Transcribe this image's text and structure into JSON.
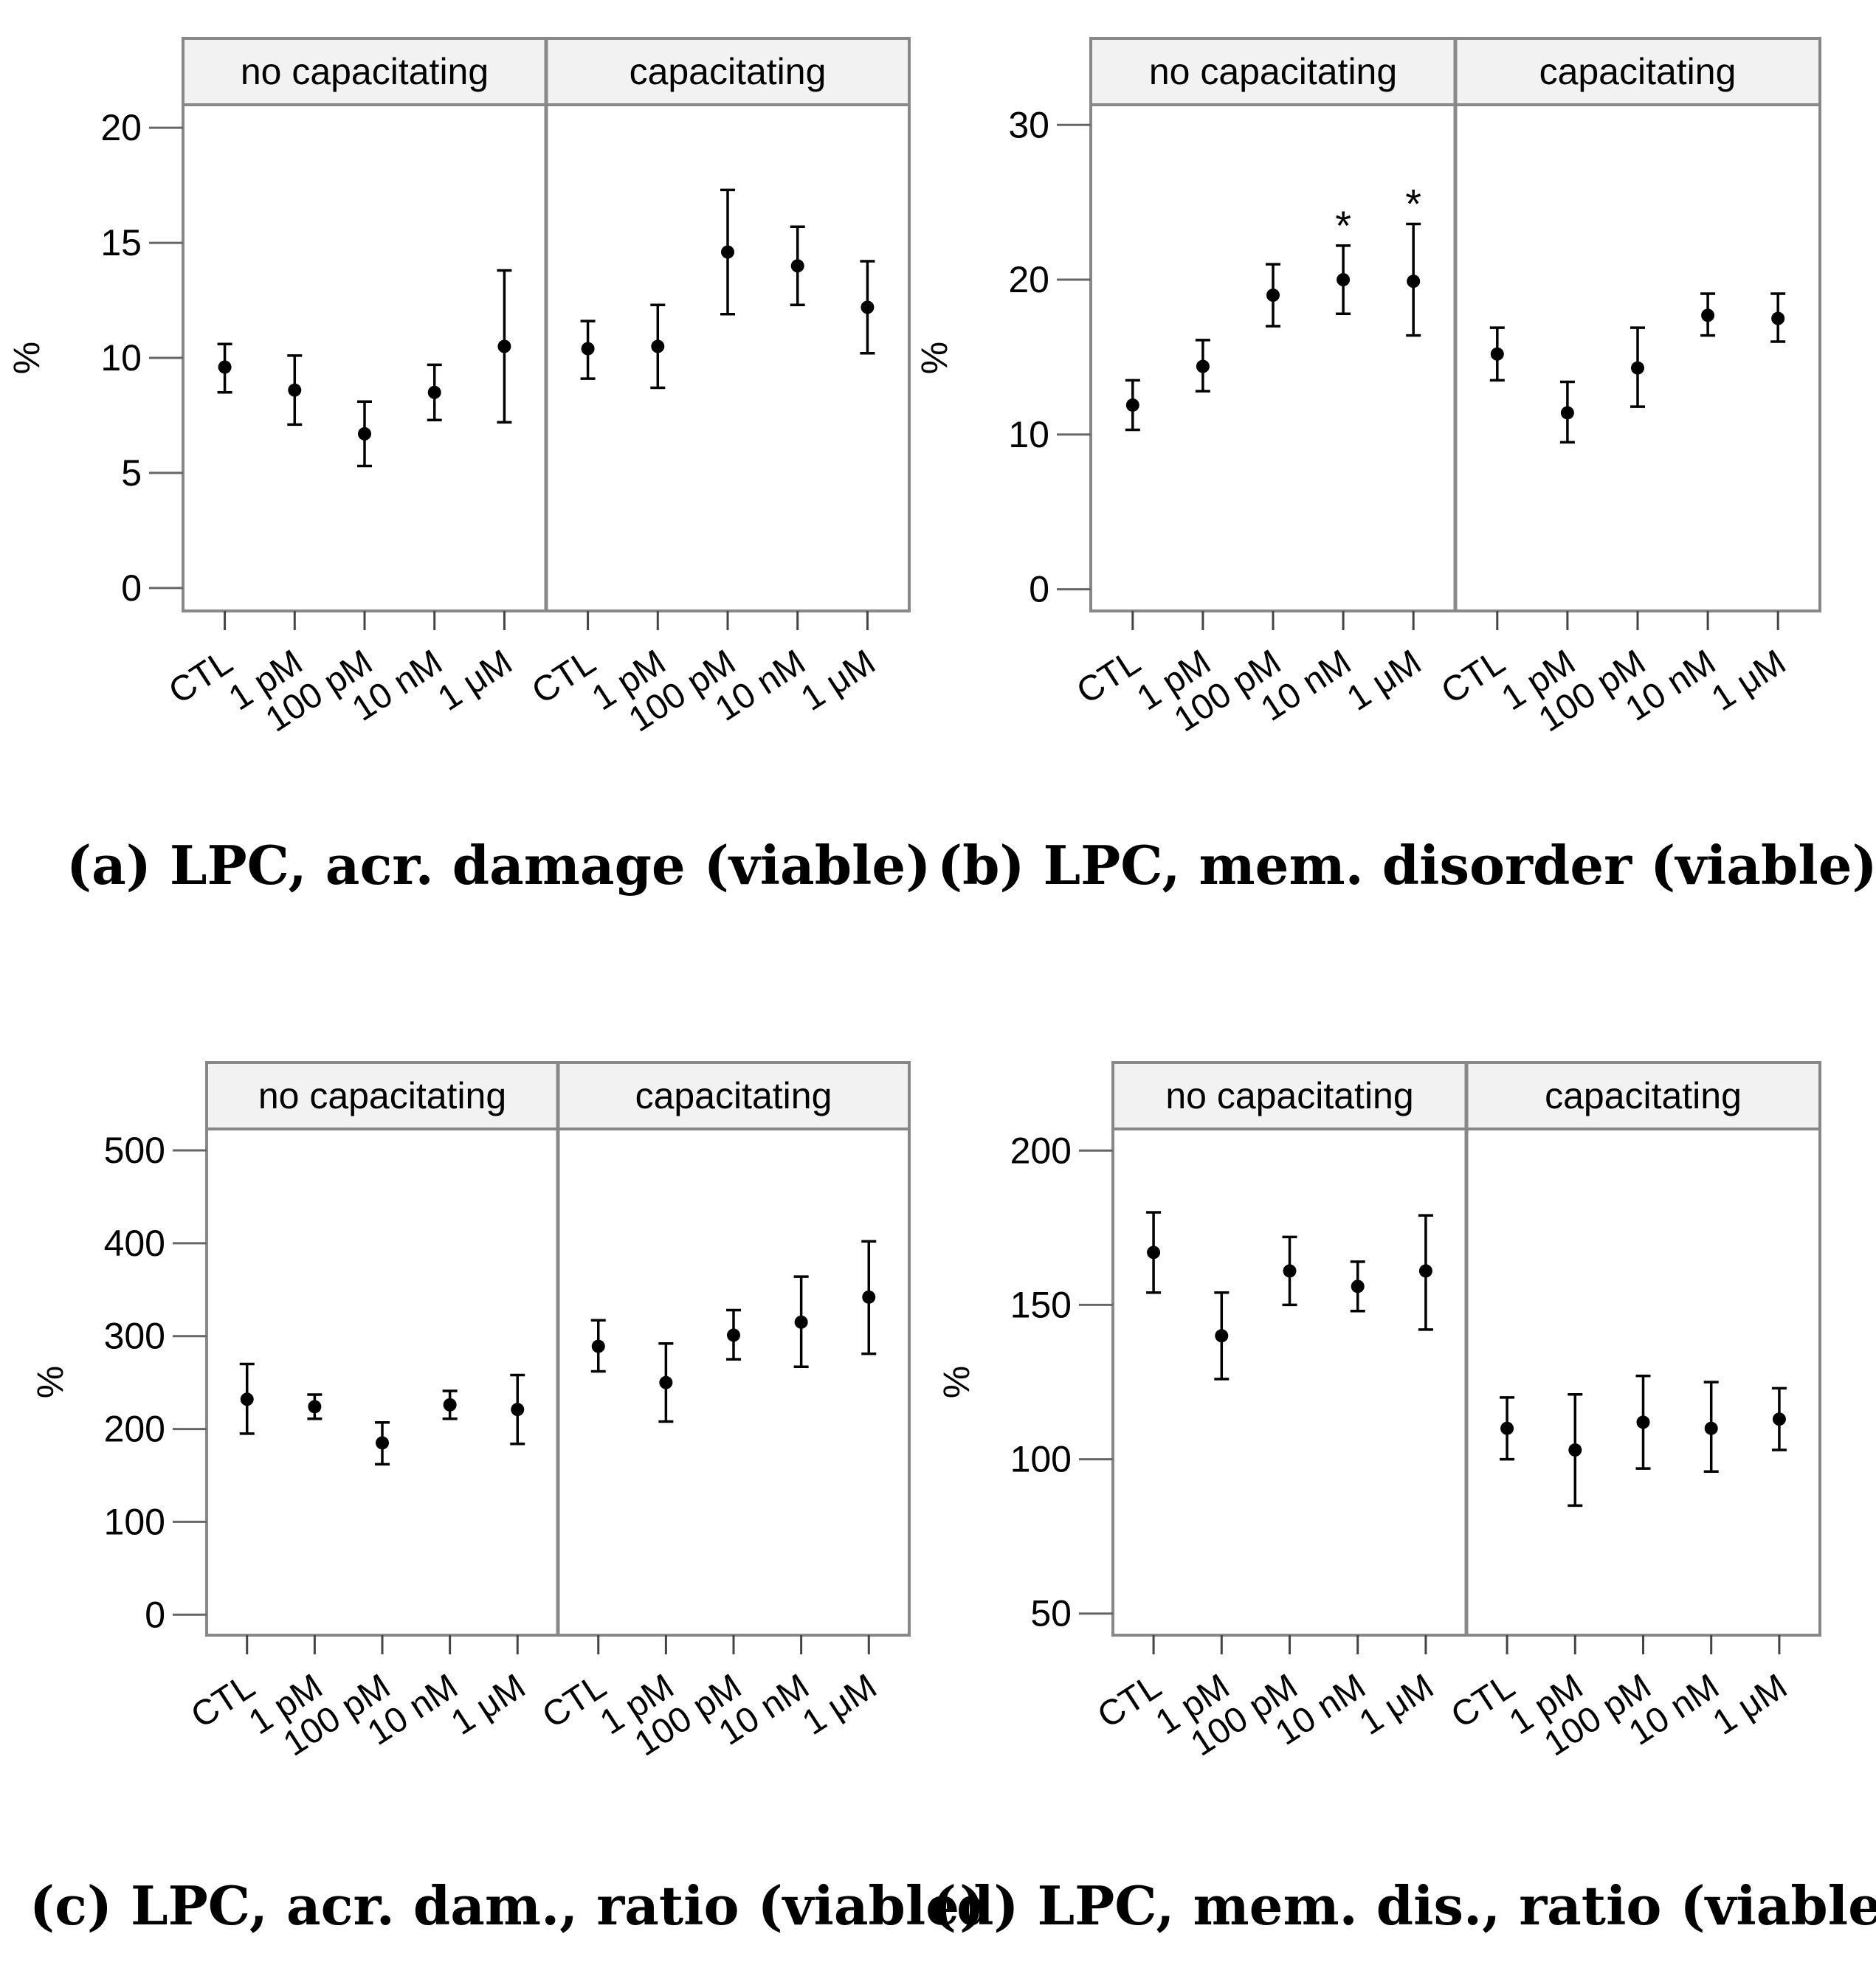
{
  "chart_data": [
    {
      "id": "a",
      "type": "scatter",
      "caption": "(a) LPC, acr. damage (viable)",
      "ylabel": "%",
      "ylim": [
        -1,
        21
      ],
      "yticks": [
        0,
        5,
        10,
        15,
        20
      ],
      "yticklabels": [
        "0",
        "5",
        "10",
        "15",
        "20"
      ],
      "panels": [
        {
          "strip": "no capacitating",
          "categories": [
            "CTL",
            "1 pM",
            "100 pM",
            "10 nM",
            "1 μM"
          ],
          "mean": [
            9.6,
            8.6,
            6.7,
            8.5,
            10.5
          ],
          "lower": [
            8.5,
            7.1,
            5.3,
            7.3,
            7.2
          ],
          "upper": [
            10.6,
            10.1,
            8.1,
            9.7,
            13.8
          ],
          "annotations": [
            "",
            "",
            "",
            "",
            ""
          ]
        },
        {
          "strip": "capacitating",
          "categories": [
            "CTL",
            "1 pM",
            "100 pM",
            "10 nM",
            "1 μM"
          ],
          "mean": [
            10.4,
            10.5,
            14.6,
            14.0,
            12.2
          ],
          "lower": [
            9.1,
            8.7,
            11.9,
            12.3,
            10.2
          ],
          "upper": [
            11.6,
            12.3,
            17.3,
            15.7,
            14.2
          ],
          "annotations": [
            "",
            "",
            "",
            "",
            ""
          ]
        }
      ]
    },
    {
      "id": "b",
      "type": "scatter",
      "caption": "(b) LPC, mem. disorder (viable)",
      "ylabel": "%",
      "ylim": [
        -1.4,
        31.3
      ],
      "yticks": [
        0,
        10,
        20,
        30
      ],
      "yticklabels": [
        "0",
        "10",
        "20",
        "30"
      ],
      "panels": [
        {
          "strip": "no capacitating",
          "categories": [
            "CTL",
            "1 pM",
            "100 pM",
            "10 nM",
            "1 μM"
          ],
          "mean": [
            11.9,
            14.4,
            19.0,
            20.0,
            19.9
          ],
          "lower": [
            10.3,
            12.8,
            17.0,
            17.8,
            16.4
          ],
          "upper": [
            13.5,
            16.1,
            21.0,
            22.2,
            23.6
          ],
          "annotations": [
            "",
            "",
            "",
            "*",
            "*"
          ]
        },
        {
          "strip": "capacitating",
          "categories": [
            "CTL",
            "1 pM",
            "100 pM",
            "10 nM",
            "1 μM"
          ],
          "mean": [
            15.2,
            11.4,
            14.3,
            17.7,
            17.5
          ],
          "lower": [
            13.5,
            9.5,
            11.8,
            16.4,
            16.0
          ],
          "upper": [
            16.9,
            13.4,
            16.9,
            19.1,
            19.1
          ],
          "annotations": [
            "",
            "",
            "",
            "",
            ""
          ]
        }
      ]
    },
    {
      "id": "c",
      "type": "scatter",
      "caption": "(c) LPC, acr. dam., ratio (viable)",
      "ylabel": "%",
      "ylim": [
        -22,
        523
      ],
      "yticks": [
        0,
        100,
        200,
        300,
        400,
        500
      ],
      "yticklabels": [
        "0",
        "100",
        "200",
        "300",
        "400",
        "500"
      ],
      "panels": [
        {
          "strip": "no capacitating",
          "categories": [
            "CTL",
            "1 pM",
            "100 pM",
            "10 nM",
            "1 μM"
          ],
          "mean": [
            232,
            224,
            185,
            226,
            221
          ],
          "lower": [
            195,
            211,
            162,
            211,
            184
          ],
          "upper": [
            270,
            237,
            207,
            241,
            258
          ],
          "annotations": [
            "",
            "",
            "",
            "",
            ""
          ]
        },
        {
          "strip": "capacitating",
          "categories": [
            "CTL",
            "1 pM",
            "100 pM",
            "10 nM",
            "1 μM"
          ],
          "mean": [
            289,
            250,
            301,
            315,
            342
          ],
          "lower": [
            262,
            208,
            275,
            267,
            281
          ],
          "upper": [
            317,
            292,
            328,
            364,
            402
          ],
          "annotations": [
            "",
            "",
            "",
            "",
            ""
          ]
        }
      ]
    },
    {
      "id": "d",
      "type": "scatter",
      "caption": "(d) LPC, mem. dis., ratio (viable)",
      "ylabel": "%",
      "ylim": [
        43,
        207
      ],
      "yticks": [
        50,
        100,
        150,
        200
      ],
      "yticklabels": [
        "50",
        "100",
        "150",
        "200"
      ],
      "panels": [
        {
          "strip": "no capacitating",
          "categories": [
            "CTL",
            "1 pM",
            "100 pM",
            "10 nM",
            "1 μM"
          ],
          "mean": [
            167,
            140,
            161,
            156,
            161
          ],
          "lower": [
            154,
            126,
            150,
            148,
            142
          ],
          "upper": [
            180,
            154,
            172,
            164,
            179
          ],
          "annotations": [
            "",
            "",
            "",
            "",
            ""
          ]
        },
        {
          "strip": "capacitating",
          "categories": [
            "CTL",
            "1 pM",
            "100 pM",
            "10 nM",
            "1 μM"
          ],
          "mean": [
            110,
            103,
            112,
            110,
            113
          ],
          "lower": [
            100,
            85,
            97,
            96,
            103
          ],
          "upper": [
            120,
            121,
            127,
            125,
            123
          ],
          "annotations": [
            "",
            "",
            "",
            "",
            ""
          ]
        }
      ]
    }
  ]
}
